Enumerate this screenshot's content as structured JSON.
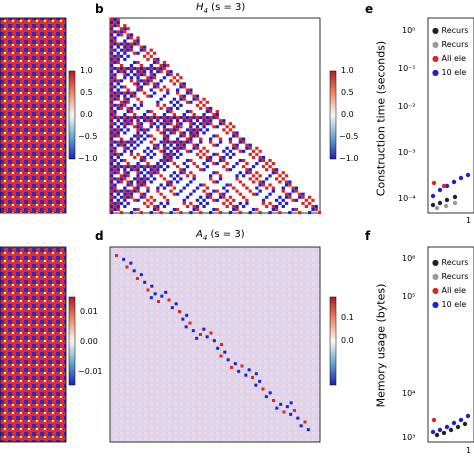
{
  "figure": {
    "panels": {
      "b": {
        "letter": "b",
        "title": "H",
        "title_sub": "4",
        "title_suffix": " (s = 3)"
      },
      "d": {
        "letter": "d",
        "title": "A",
        "title_sub": "4",
        "title_suffix": " (s = 3)"
      },
      "e": {
        "letter": "e",
        "ylabel": "Construction time (seconds)"
      },
      "f": {
        "letter": "f",
        "ylabel": "Memory usage (bytes)"
      }
    },
    "colorbars": {
      "top_left": {
        "ticks": [
          "1.0",
          "0.5",
          "0.0",
          "−0.5",
          "−1.0"
        ]
      },
      "top_mid": {
        "ticks": [
          "1.0",
          "0.5",
          "0.0",
          "−0.5",
          "−1.0"
        ]
      },
      "bot_left": {
        "ticks": [
          "0.01",
          "0.00",
          "−0.01"
        ]
      },
      "bot_mid": {
        "ticks": [
          "0.1",
          "0.0"
        ]
      }
    },
    "legend": [
      "Recurs",
      "Recurs",
      "All ele",
      "10 ele"
    ],
    "e_yticks": [
      "10⁰",
      "10⁻¹",
      "10⁻²",
      "10⁻³",
      "10⁻⁴"
    ],
    "f_yticks": [
      "10⁵",
      "10⁴",
      "10³"
    ],
    "f_yticks_extra": [
      "10⁶"
    ],
    "e_xtick": "1",
    "f_xtick": "1",
    "colors": {
      "red": "#d62728",
      "blue": "#1f1fcf",
      "black": "#222222",
      "gray": "#999999"
    }
  }
}
